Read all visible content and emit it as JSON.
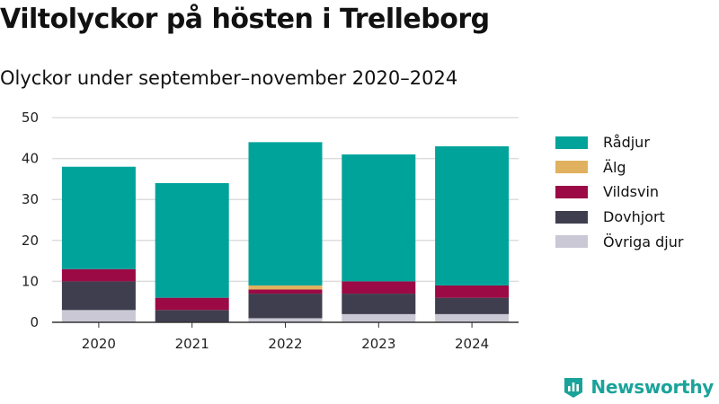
{
  "header": {
    "title": "Viltolyckor på hösten i Trelleborg",
    "subtitle": "Olyckor under september–november 2020–2024"
  },
  "brand": {
    "name": "Newsworthy",
    "icon": "newsworthy-logo-icon",
    "color": "#1aa39a"
  },
  "chart_data": {
    "type": "bar",
    "stacked": true,
    "title": "Viltolyckor på hösten i Trelleborg",
    "subtitle": "Olyckor under september–november 2020–2024",
    "xlabel": "",
    "ylabel": "",
    "ylim": [
      0,
      50
    ],
    "yticks": [
      0,
      10,
      20,
      30,
      40,
      50
    ],
    "grid": true,
    "legend_position": "right",
    "categories": [
      "2020",
      "2021",
      "2022",
      "2023",
      "2024"
    ],
    "series": [
      {
        "name": "Övriga djur",
        "color": "#c9c8d4",
        "values": [
          3,
          0,
          1,
          2,
          2
        ]
      },
      {
        "name": "Dovhjort",
        "color": "#3f3e4e",
        "values": [
          7,
          3,
          6,
          5,
          4
        ]
      },
      {
        "name": "Vildsvin",
        "color": "#9b0a45",
        "values": [
          3,
          3,
          1,
          3,
          3
        ]
      },
      {
        "name": "Älg",
        "color": "#e0b15f",
        "values": [
          0,
          0,
          1,
          0,
          0
        ]
      },
      {
        "name": "Rådjur",
        "color": "#00a39a",
        "values": [
          25,
          28,
          35,
          31,
          34
        ]
      }
    ],
    "legend_order": [
      "Rådjur",
      "Älg",
      "Vildsvin",
      "Dovhjort",
      "Övriga djur"
    ]
  }
}
